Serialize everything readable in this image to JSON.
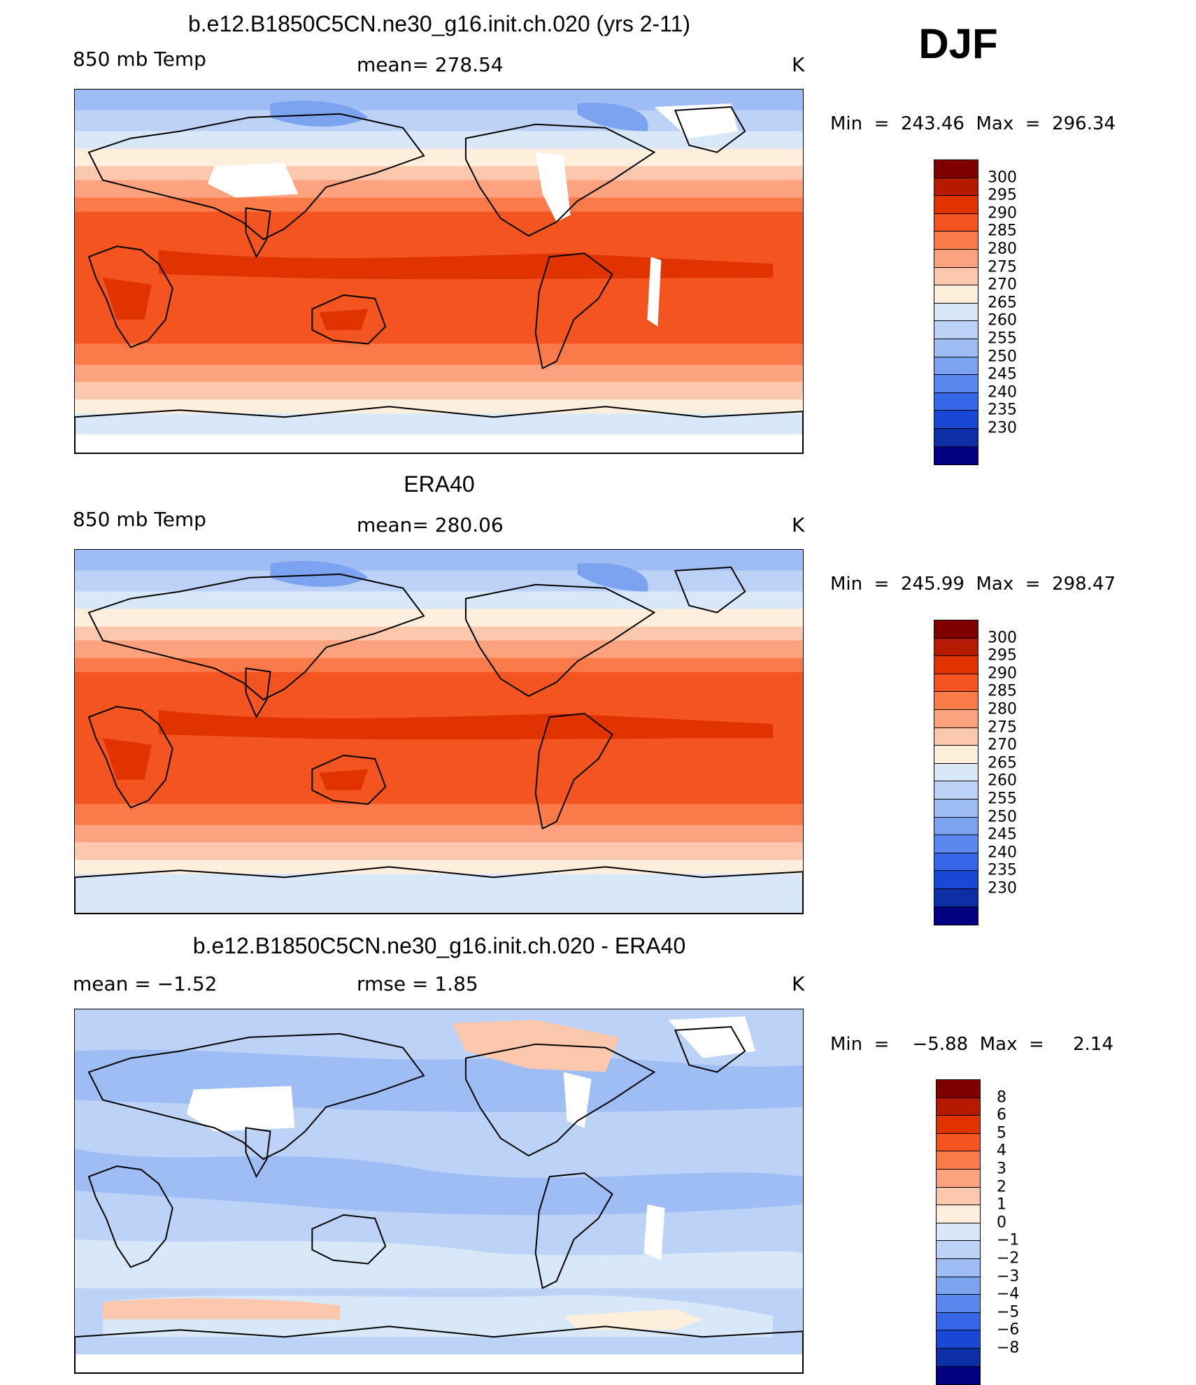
{
  "season": "DJF",
  "panels": [
    {
      "id": "model",
      "title": "b.e12.B1850C5CN.ne30_g16.init.ch.020 (yrs 2-11)",
      "left_label": "850 mb Temp",
      "center_label": "mean=  278.54",
      "units": "K",
      "minmax": "Min  =  243.46  Max  =  296.34",
      "colorbar": {
        "labels": [
          "300",
          "295",
          "290",
          "285",
          "280",
          "275",
          "270",
          "265",
          "260",
          "255",
          "250",
          "245",
          "240",
          "235",
          "230"
        ],
        "colors": [
          "#800000",
          "#b51a00",
          "#e03300",
          "#f4541f",
          "#fb7a4a",
          "#fda27e",
          "#fcc8ad",
          "#feeedc",
          "#d8e8f8",
          "#bcd3f7",
          "#9ebdf5",
          "#7ca3f0",
          "#5a88ef",
          "#3567e8",
          "#1a48d6",
          "#0c2ea6",
          "#000080"
        ]
      },
      "field": "temp"
    },
    {
      "id": "obs",
      "title": "ERA40",
      "left_label": "850 mb Temp",
      "center_label": "mean=  280.06",
      "units": "K",
      "minmax": "Min  =  245.99  Max  =  298.47",
      "colorbar": {
        "labels": [
          "300",
          "295",
          "290",
          "285",
          "280",
          "275",
          "270",
          "265",
          "260",
          "255",
          "250",
          "245",
          "240",
          "235",
          "230"
        ],
        "colors": [
          "#800000",
          "#b51a00",
          "#e03300",
          "#f4541f",
          "#fb7a4a",
          "#fda27e",
          "#fcc8ad",
          "#feeedc",
          "#d8e8f8",
          "#bcd3f7",
          "#9ebdf5",
          "#7ca3f0",
          "#5a88ef",
          "#3567e8",
          "#1a48d6",
          "#0c2ea6",
          "#000080"
        ]
      },
      "field": "temp"
    },
    {
      "id": "diff",
      "title": "b.e12.B1850C5CN.ne30_g16.init.ch.020 - ERA40",
      "left_label": "mean  =    −1.52",
      "center_label": "rmse  =     1.85",
      "units": "K",
      "minmax": "Min  =    −5.88  Max  =     2.14",
      "colorbar": {
        "labels": [
          "8",
          "6",
          "5",
          "4",
          "3",
          "2",
          "1",
          "0",
          "−1",
          "−2",
          "−3",
          "−4",
          "−5",
          "−6",
          "−8"
        ],
        "colors": [
          "#800000",
          "#b51a00",
          "#e03300",
          "#f4541f",
          "#fb7a4a",
          "#fda27e",
          "#fcc8ad",
          "#feeedc",
          "#d8e8f8",
          "#bcd3f7",
          "#9ebdf5",
          "#7ca3f0",
          "#5a88ef",
          "#3567e8",
          "#1a48d6",
          "#0c2ea6",
          "#000080"
        ]
      },
      "field": "diff"
    }
  ]
}
